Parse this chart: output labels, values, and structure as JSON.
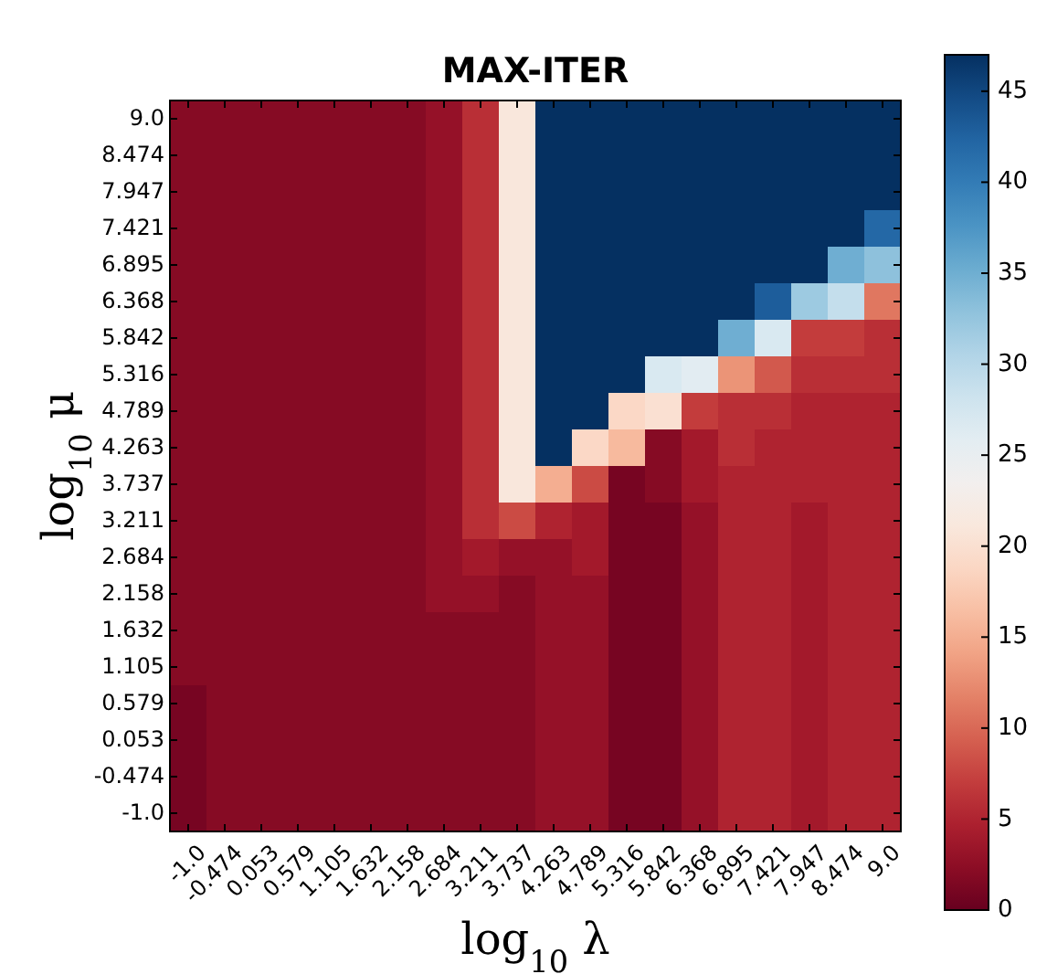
{
  "chart_data": {
    "type": "heatmap",
    "title": "MAX-ITER",
    "xlabel": "log$_{10}$ λ",
    "ylabel": "log$_{10}$ μ",
    "categories": [
      "-1.0",
      "-0.474",
      "0.053",
      "0.579",
      "1.105",
      "1.632",
      "2.158",
      "2.684",
      "3.211",
      "3.737",
      "4.263",
      "4.789",
      "5.316",
      "5.842",
      "6.368",
      "6.895",
      "7.421",
      "7.947",
      "8.474",
      "9.0"
    ],
    "y_categories": [
      "9.0",
      "8.474",
      "7.947",
      "7.421",
      "6.895",
      "6.368",
      "5.842",
      "5.316",
      "4.789",
      "4.263",
      "3.737",
      "3.211",
      "2.684",
      "2.158",
      "1.632",
      "1.105",
      "0.579",
      "0.053",
      "-0.474",
      "-1.0"
    ],
    "cells": [
      [
        2,
        2,
        2,
        2,
        2,
        2,
        2,
        3,
        6,
        21,
        47,
        47,
        47,
        47,
        47,
        47,
        47,
        47,
        47,
        47
      ],
      [
        2,
        2,
        2,
        2,
        2,
        2,
        2,
        3,
        6,
        21,
        47,
        47,
        47,
        47,
        47,
        47,
        47,
        47,
        47,
        47
      ],
      [
        2,
        2,
        2,
        2,
        2,
        2,
        2,
        3,
        6,
        21,
        47,
        47,
        47,
        47,
        47,
        47,
        47,
        47,
        47,
        47
      ],
      [
        2,
        2,
        2,
        2,
        2,
        2,
        2,
        3,
        6,
        21,
        47,
        47,
        47,
        47,
        47,
        47,
        47,
        47,
        47,
        42
      ],
      [
        2,
        2,
        2,
        2,
        2,
        2,
        2,
        3,
        6,
        21,
        47,
        47,
        47,
        47,
        47,
        47,
        47,
        47,
        35,
        33
      ],
      [
        2,
        2,
        2,
        2,
        2,
        2,
        2,
        3,
        6,
        21,
        47,
        47,
        47,
        47,
        47,
        47,
        43,
        32,
        29,
        11
      ],
      [
        2,
        2,
        2,
        2,
        2,
        2,
        2,
        3,
        6,
        21,
        47,
        47,
        47,
        47,
        47,
        35,
        27,
        7,
        7,
        6
      ],
      [
        2,
        2,
        2,
        2,
        2,
        2,
        2,
        3,
        6,
        21,
        47,
        47,
        47,
        27,
        26,
        13,
        9,
        6,
        6,
        6
      ],
      [
        2,
        2,
        2,
        2,
        2,
        2,
        2,
        3,
        6,
        21,
        47,
        47,
        19,
        20,
        7,
        6,
        6,
        5,
        5,
        5
      ],
      [
        2,
        2,
        2,
        2,
        2,
        2,
        2,
        3,
        6,
        21,
        47,
        19,
        16,
        2,
        4,
        6,
        5,
        5,
        5,
        5
      ],
      [
        2,
        2,
        2,
        2,
        2,
        2,
        2,
        3,
        6,
        21,
        15,
        8,
        1,
        2,
        4,
        5,
        5,
        5,
        5,
        5
      ],
      [
        2,
        2,
        2,
        2,
        2,
        2,
        2,
        3,
        6,
        8,
        5,
        4,
        1,
        1,
        3,
        5,
        5,
        4,
        5,
        5
      ],
      [
        2,
        2,
        2,
        2,
        2,
        2,
        2,
        3,
        4,
        3,
        3,
        4,
        1,
        1,
        3,
        5,
        5,
        4,
        5,
        5
      ],
      [
        2,
        2,
        2,
        2,
        2,
        2,
        2,
        3,
        3,
        2,
        3,
        3,
        1,
        1,
        3,
        5,
        5,
        4,
        5,
        5
      ],
      [
        2,
        2,
        2,
        2,
        2,
        2,
        2,
        2,
        2,
        2,
        3,
        3,
        1,
        1,
        3,
        5,
        5,
        4,
        5,
        5
      ],
      [
        2,
        2,
        2,
        2,
        2,
        2,
        2,
        2,
        2,
        2,
        3,
        3,
        1,
        1,
        3,
        5,
        5,
        4,
        5,
        5
      ],
      [
        1,
        2,
        2,
        2,
        2,
        2,
        2,
        2,
        2,
        2,
        3,
        3,
        1,
        1,
        3,
        5,
        5,
        4,
        5,
        5
      ],
      [
        1,
        2,
        2,
        2,
        2,
        2,
        2,
        2,
        2,
        2,
        3,
        3,
        1,
        1,
        3,
        5,
        5,
        4,
        5,
        5
      ],
      [
        1,
        2,
        2,
        2,
        2,
        2,
        2,
        2,
        2,
        2,
        3,
        3,
        1,
        1,
        3,
        5,
        5,
        4,
        5,
        5
      ],
      [
        1,
        2,
        2,
        2,
        2,
        2,
        2,
        2,
        2,
        2,
        3,
        3,
        1,
        1,
        3,
        5,
        5,
        4,
        5,
        5
      ]
    ],
    "clim": [
      0,
      47
    ],
    "cticks": [
      0,
      5,
      10,
      15,
      20,
      25,
      30,
      35,
      40,
      45
    ]
  }
}
